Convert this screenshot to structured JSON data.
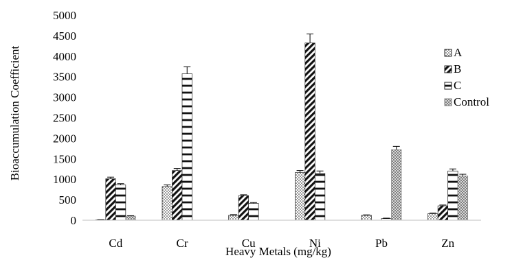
{
  "chart_data": {
    "type": "bar",
    "title": "",
    "xlabel": "Heavy Metals (mg/kg)",
    "ylabel": "Bioaccumulation Coefficient",
    "ylim": [
      0,
      5000
    ],
    "yticks": [
      0,
      500,
      1000,
      1500,
      2000,
      2500,
      3000,
      3500,
      4000,
      4500,
      5000
    ],
    "categories": [
      "Cd",
      "Cr",
      "Cu",
      "Ni",
      "Pb",
      "Zn"
    ],
    "series": [
      {
        "name": "A",
        "values": [
          10,
          820,
          120,
          1160,
          120,
          160
        ],
        "errors": [
          5,
          40,
          15,
          50,
          10,
          15
        ],
        "pattern": "dots-diagonal"
      },
      {
        "name": "B",
        "values": [
          1010,
          1210,
          600,
          4320,
          0,
          350
        ],
        "errors": [
          40,
          50,
          20,
          220,
          0,
          20
        ],
        "pattern": "diag-down"
      },
      {
        "name": "C",
        "values": [
          860,
          3570,
          410,
          1140,
          40,
          1200
        ],
        "errors": [
          30,
          170,
          20,
          60,
          10,
          50
        ],
        "pattern": "h-bricks"
      },
      {
        "name": "Control",
        "values": [
          100,
          0,
          0,
          0,
          1720,
          1080
        ],
        "errors": [
          10,
          0,
          0,
          0,
          80,
          40
        ],
        "pattern": "checker"
      }
    ],
    "legend": {
      "position": "right"
    },
    "grid": false
  }
}
